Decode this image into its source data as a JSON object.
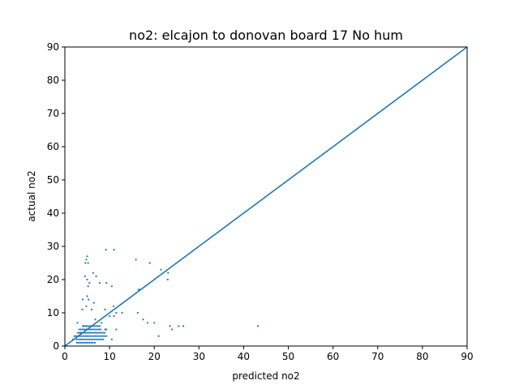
{
  "chart_data": {
    "type": "scatter",
    "title": "no2: elcajon to donovan board 17 No hum",
    "xlabel": "predicted no2",
    "ylabel": "actual no2",
    "xlim": [
      0,
      90
    ],
    "ylim": [
      0,
      90
    ],
    "xticks": [
      0,
      10,
      20,
      30,
      40,
      50,
      60,
      70,
      80,
      90
    ],
    "yticks": [
      0,
      10,
      20,
      30,
      40,
      50,
      60,
      70,
      80,
      90
    ],
    "grid": false,
    "series_color": "#1f77b4",
    "reference_line": {
      "type": "identity",
      "from": [
        0,
        0
      ],
      "to": [
        90,
        90
      ]
    },
    "series": [
      {
        "points": [
          [
            5.0,
            27
          ],
          [
            4.8,
            26
          ],
          [
            4.6,
            25
          ],
          [
            5.2,
            25
          ],
          [
            9.2,
            29
          ],
          [
            11.0,
            29
          ],
          [
            15.9,
            26
          ],
          [
            19.0,
            25
          ],
          [
            21.5,
            23
          ],
          [
            23.1,
            22
          ],
          [
            23.0,
            20
          ],
          [
            6.3,
            22
          ],
          [
            7.0,
            21
          ],
          [
            4.5,
            21
          ],
          [
            5.0,
            20
          ],
          [
            5.5,
            19
          ],
          [
            5.2,
            18
          ],
          [
            7.8,
            19
          ],
          [
            9.3,
            19
          ],
          [
            10.5,
            18
          ],
          [
            16.5,
            17
          ],
          [
            16.8,
            17
          ],
          [
            5.0,
            15
          ],
          [
            5.3,
            14
          ],
          [
            4.0,
            14
          ],
          [
            6.5,
            13
          ],
          [
            4.8,
            12
          ],
          [
            10.9,
            12
          ],
          [
            3.9,
            11
          ],
          [
            6.0,
            11
          ],
          [
            9.0,
            11
          ],
          [
            11.5,
            10
          ],
          [
            12.8,
            10
          ],
          [
            16.3,
            10
          ],
          [
            10.0,
            9
          ],
          [
            11.0,
            9
          ],
          [
            17.5,
            8
          ],
          [
            18.5,
            7
          ],
          [
            20.0,
            7
          ],
          [
            23.5,
            6
          ],
          [
            24.0,
            5
          ],
          [
            25.5,
            6
          ],
          [
            26.5,
            6
          ],
          [
            43.2,
            6
          ],
          [
            21.0,
            3
          ],
          [
            10.5,
            2
          ],
          [
            11.5,
            5
          ],
          [
            8.2,
            7
          ],
          [
            6.8,
            8
          ],
          [
            2.8,
            7
          ],
          [
            3.5,
            4
          ],
          [
            4.0,
            6
          ],
          [
            4.3,
            6
          ],
          [
            4.7,
            6
          ],
          [
            5.0,
            6
          ],
          [
            5.4,
            6
          ],
          [
            5.8,
            6
          ],
          [
            6.2,
            6
          ],
          [
            6.6,
            6
          ],
          [
            7.0,
            6
          ],
          [
            7.4,
            6
          ],
          [
            7.8,
            6
          ],
          [
            3.2,
            5
          ],
          [
            3.6,
            5
          ],
          [
            4.0,
            5
          ],
          [
            4.4,
            5
          ],
          [
            4.8,
            5
          ],
          [
            5.2,
            5
          ],
          [
            5.6,
            5
          ],
          [
            6.0,
            5
          ],
          [
            6.4,
            5
          ],
          [
            6.8,
            5
          ],
          [
            7.2,
            5
          ],
          [
            7.6,
            5
          ],
          [
            8.0,
            5
          ],
          [
            9.0,
            5
          ],
          [
            9.3,
            5
          ],
          [
            2.9,
            4
          ],
          [
            3.3,
            4
          ],
          [
            3.7,
            4
          ],
          [
            4.1,
            4
          ],
          [
            4.5,
            4
          ],
          [
            4.9,
            4
          ],
          [
            5.3,
            4
          ],
          [
            5.7,
            4
          ],
          [
            6.1,
            4
          ],
          [
            6.5,
            4
          ],
          [
            6.9,
            4
          ],
          [
            7.3,
            4
          ],
          [
            7.7,
            4
          ],
          [
            8.1,
            4
          ],
          [
            8.5,
            4
          ],
          [
            8.9,
            4
          ],
          [
            2.5,
            3
          ],
          [
            2.9,
            3
          ],
          [
            3.3,
            3
          ],
          [
            3.7,
            3
          ],
          [
            4.1,
            3
          ],
          [
            4.5,
            3
          ],
          [
            4.9,
            3
          ],
          [
            5.3,
            3
          ],
          [
            5.7,
            3
          ],
          [
            6.1,
            3
          ],
          [
            6.5,
            3
          ],
          [
            6.9,
            3
          ],
          [
            7.3,
            3
          ],
          [
            7.7,
            3
          ],
          [
            8.1,
            3
          ],
          [
            8.5,
            3
          ],
          [
            8.9,
            3
          ],
          [
            9.3,
            3
          ],
          [
            2.6,
            2
          ],
          [
            3.0,
            2
          ],
          [
            3.4,
            2
          ],
          [
            3.8,
            2
          ],
          [
            4.2,
            2
          ],
          [
            4.6,
            2
          ],
          [
            5.0,
            2
          ],
          [
            5.4,
            2
          ],
          [
            5.8,
            2
          ],
          [
            6.2,
            2
          ],
          [
            6.6,
            2
          ],
          [
            7.0,
            2
          ],
          [
            7.4,
            2
          ],
          [
            7.8,
            2
          ],
          [
            8.2,
            2
          ],
          [
            8.6,
            2
          ],
          [
            2.7,
            1
          ],
          [
            3.1,
            1
          ],
          [
            3.5,
            1
          ],
          [
            3.9,
            1
          ],
          [
            4.3,
            1
          ],
          [
            4.7,
            1
          ],
          [
            5.1,
            1
          ],
          [
            5.5,
            1
          ],
          [
            5.9,
            1
          ],
          [
            6.3,
            1
          ],
          [
            6.7,
            1
          ],
          [
            2.1,
            3
          ],
          [
            1.8,
            2
          ]
        ]
      }
    ]
  }
}
